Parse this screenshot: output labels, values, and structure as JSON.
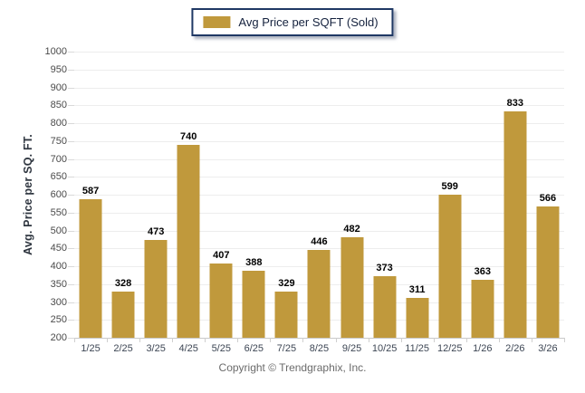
{
  "legend": {
    "label": "Avg Price per SQFT (Sold)"
  },
  "footer": {
    "text": "Copyright © Trendgraphix, Inc."
  },
  "colors": {
    "bar": "#C0993C",
    "legend_border": "#1F3864",
    "grid": "#EDEDED",
    "axis": "#C9C9C9",
    "value_label": "#000000",
    "tick_label": "#4A4A4A",
    "footer_text": "#6B6B6B"
  },
  "chart_data": {
    "type": "bar",
    "title": "Avg Price per SQFT (Sold)",
    "categories": [
      "1/25",
      "2/25",
      "3/25",
      "4/25",
      "5/25",
      "6/25",
      "7/25",
      "8/25",
      "9/25",
      "10/25",
      "11/25",
      "12/25",
      "1/26",
      "2/26",
      "3/26"
    ],
    "values": [
      587,
      328,
      473,
      740,
      407,
      388,
      329,
      446,
      482,
      373,
      311,
      599,
      363,
      833,
      566
    ],
    "xlabel": "",
    "ylabel": "Avg. Price per SQ. FT.",
    "ylim": [
      200,
      1000
    ],
    "ytick_step": 50,
    "grid": "horizontal",
    "legend_position": "top-center",
    "bar_color": "#C0993C"
  }
}
